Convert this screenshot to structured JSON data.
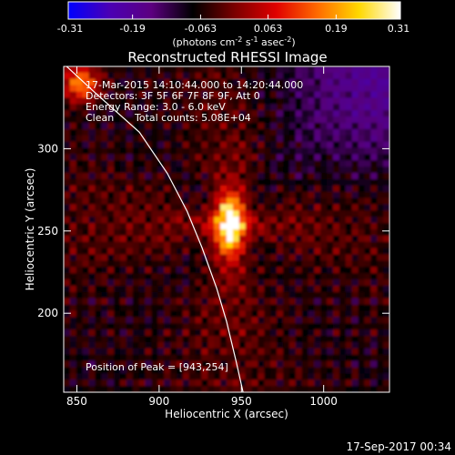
{
  "chart_data": {
    "type": "heatmap",
    "title": "Reconstructed RHESSI Image",
    "xlabel": "Heliocentric X (arcsec)",
    "ylabel": "Heliocentric Y (arcsec)",
    "xlim": [
      842,
      1040
    ],
    "ylim": [
      152,
      350
    ],
    "x_ticks": [
      850,
      900,
      950,
      1000
    ],
    "y_ticks": [
      200,
      250,
      300
    ],
    "colorbar": {
      "min": -0.31,
      "max": 0.31,
      "tick_labels": [
        "-0.31",
        "-0.19",
        "-0.063",
        "0.063",
        "0.19",
        "0.31"
      ],
      "units_parts": [
        "(photons cm",
        "-2",
        " s",
        "-1",
        " asec",
        "-2",
        ")"
      ],
      "colormap": [
        "#0000ff",
        "#4b00b4",
        "#5c0080",
        "#000000",
        "#7a0000",
        "#e00000",
        "#ff6a00",
        "#ffd800",
        "#ffffff"
      ]
    },
    "annotations": [
      "17-Mar-2015 14:10:44.000 to 14:20:44.000",
      "Detectors: 3F 5F 6F 7F 8F 9F, Att 0",
      "Energy Range: 3.0 - 6.0 keV",
      "Clean",
      "Total counts: 5.08E+04"
    ],
    "peak_label": "Position of Peak = [943,254]",
    "peak": {
      "x": 943,
      "y": 254,
      "value": 0.31
    },
    "secondary_source": {
      "x": 852,
      "y": 340,
      "value": 0.2
    },
    "limb_line": [
      [
        833,
        360
      ],
      [
        860,
        335
      ],
      [
        888,
        310
      ],
      [
        905,
        285
      ],
      [
        917,
        262
      ],
      [
        926,
        240
      ],
      [
        935,
        215
      ],
      [
        941,
        195
      ],
      [
        947,
        170
      ],
      [
        951,
        152
      ]
    ]
  },
  "footer": {
    "timestamp": "17-Sep-2017 00:34"
  }
}
